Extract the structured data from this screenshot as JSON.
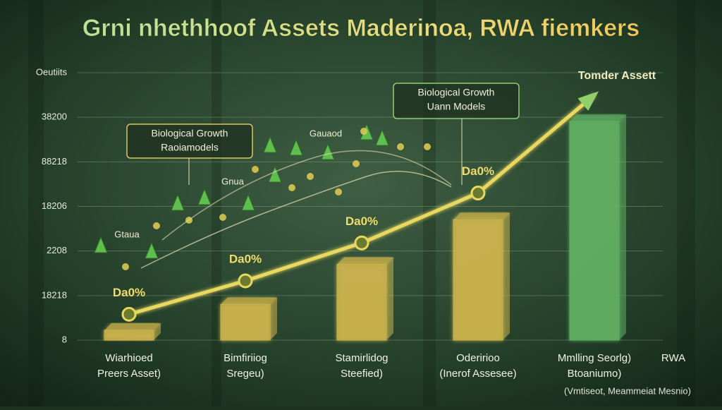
{
  "chart_data": {
    "type": "bar",
    "title": "Grni nhethhoof Assets Maderinoa, RWA fiemkers",
    "categories": [
      "Wiarhioed\nPreers Asset)",
      "Bimfiriiog\nSregeu)",
      "Stamirlidog\nSteefied)",
      "Oderirioo\n(Inerof Assesee)",
      "Mmlling Seorlg)\nBtoaniumo)"
    ],
    "values": [
      0.22,
      0.8,
      1.7,
      2.7,
      4.9
    ],
    "colors": [
      "#c9b24c",
      "#c9b24c",
      "#c9b24c",
      "#c9b24c",
      "#5fae62"
    ],
    "series": [
      {
        "name": "Tomder Assett",
        "color": "#e8d860",
        "values": [
          0.58,
          1.33,
          2.18,
          3.3,
          5.5
        ]
      }
    ],
    "annotations": [
      "Da0%",
      "Da0%",
      "Da0%",
      "Da0%"
    ],
    "x_label": "RWA",
    "x_note": "(Vmtiseot, Meammeiat Mesnio)",
    "callouts": [
      {
        "lines": [
          "Biological Growth",
          "Raoiamodels"
        ]
      },
      {
        "lines": [
          "Biological Growth",
          "Uann Models"
        ]
      }
    ],
    "forest_labels": [
      "Gtaua",
      "Gnua",
      "Gauaod"
    ],
    "ylim": [
      0,
      6
    ],
    "yticks": [
      {
        "value": 0,
        "label": "8"
      },
      {
        "value": 1,
        "label": "18218"
      },
      {
        "value": 2,
        "label": "2208"
      },
      {
        "value": 3,
        "label": "18206"
      },
      {
        "value": 4,
        "label": "88218"
      },
      {
        "value": 5,
        "label": "38200"
      },
      {
        "value": 6,
        "label": "Oeutiits"
      }
    ],
    "grid": true
  }
}
